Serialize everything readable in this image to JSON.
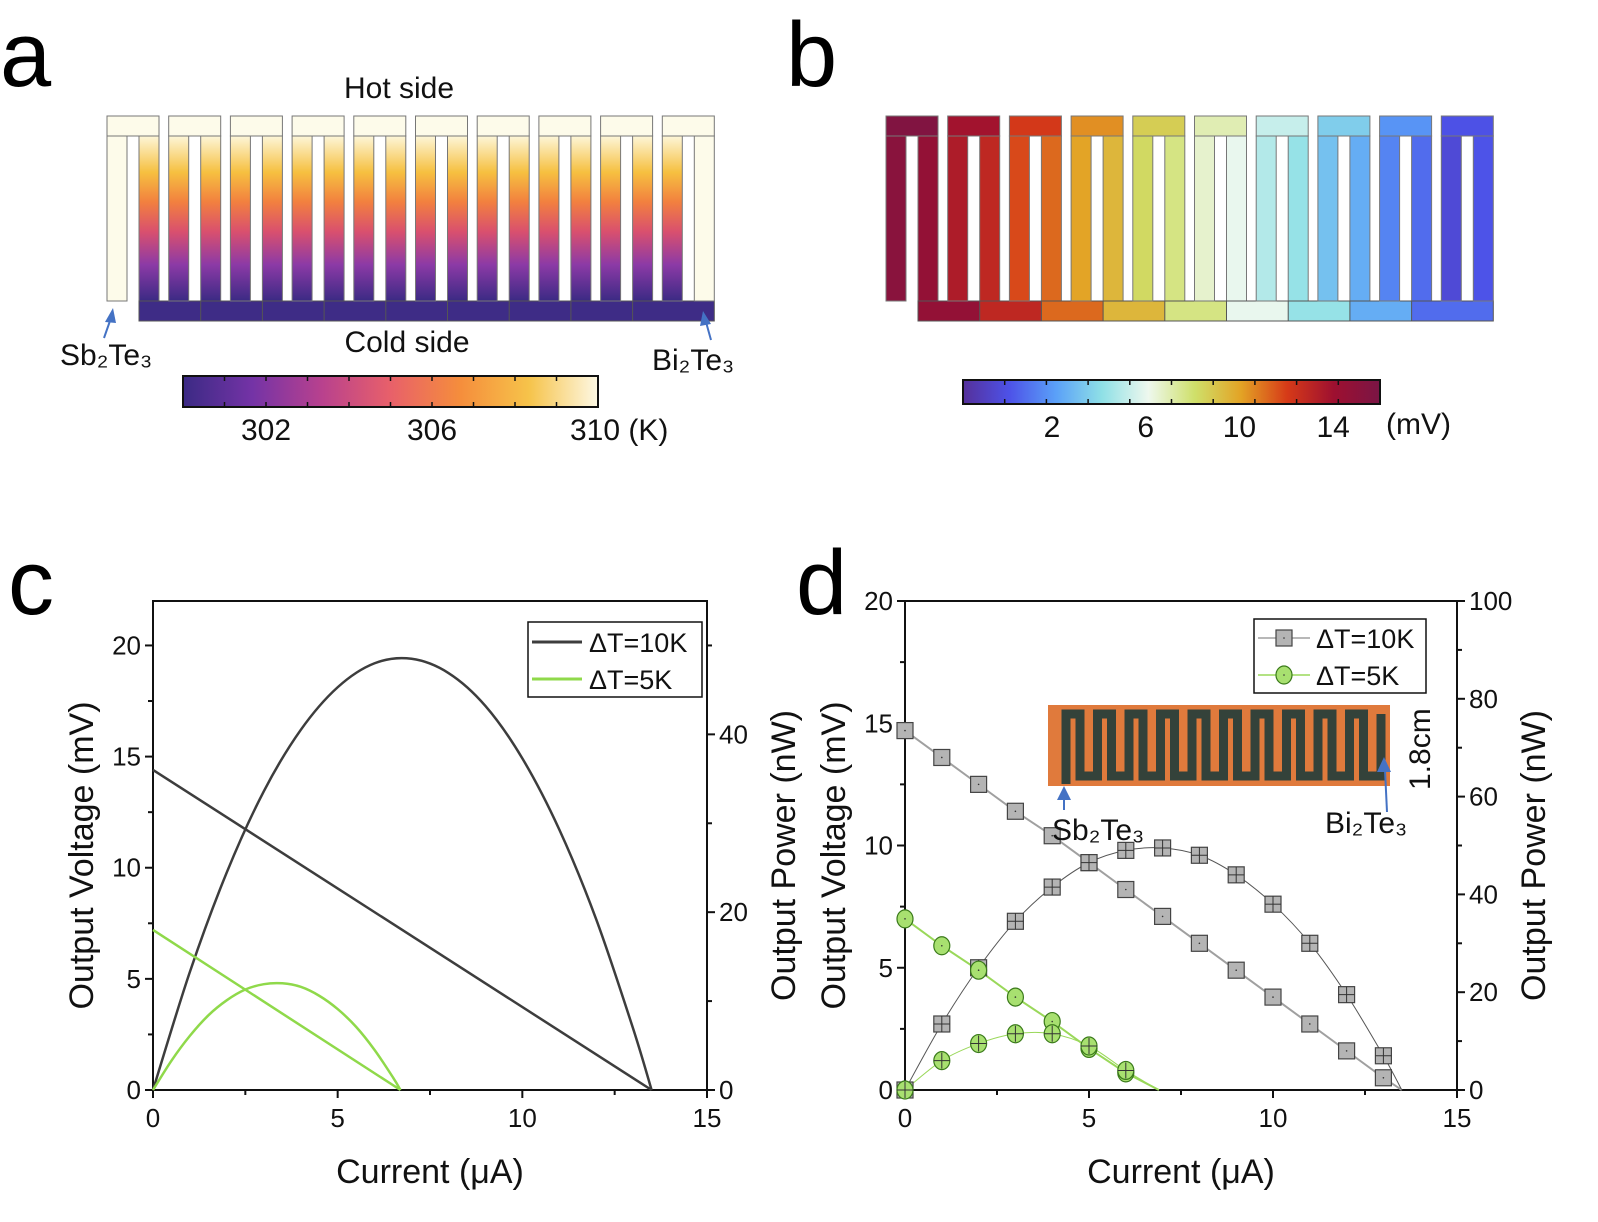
{
  "panels": {
    "a": {
      "letter": "a",
      "hot_label": "Hot side",
      "cold_label": "Cold side",
      "left_material": "Sb₂Te₃",
      "right_material": "Bi₂Te₃",
      "colorbar": {
        "min": 300,
        "max": 310,
        "ticks": [
          "302",
          "306",
          "310 (K)"
        ],
        "tick_values": [
          302,
          306,
          310
        ],
        "colors": [
          "#3b2a84",
          "#7433a6",
          "#b8418e",
          "#e8606a",
          "#f58d3c",
          "#f6c34a",
          "#fdf8e4"
        ]
      }
    },
    "b": {
      "letter": "b",
      "colorbar": {
        "min": -1.8,
        "max": 16,
        "ticks": [
          "2",
          "6",
          "10",
          "14"
        ],
        "tick_values": [
          2,
          6,
          10,
          14
        ],
        "unit": "(mV)",
        "colors": [
          "#55309a",
          "#4d52e8",
          "#5aa0f8",
          "#8fe0e6",
          "#eef8ee",
          "#cfe06a",
          "#e3a325",
          "#d63a18",
          "#9e1030",
          "#7a1545"
        ]
      }
    },
    "c": {
      "letter": "c"
    },
    "d": {
      "letter": "d",
      "inset": {
        "size_label": "1.8cm",
        "left_material": "Sb₂Te₃",
        "right_material": "Bi₂Te₃"
      }
    }
  },
  "chart_data": [
    {
      "panel": "c",
      "type": "line",
      "xlabel": "Current (μA)",
      "ylabel": "Output Voltage (mV)",
      "y2label": "Output Power (nW)",
      "xlim": [
        0,
        15
      ],
      "ylim": [
        0,
        22
      ],
      "y2lim": [
        0,
        55
      ],
      "xticks": [
        0,
        5,
        10,
        15
      ],
      "yticks": [
        0,
        5,
        10,
        15,
        20
      ],
      "y2ticks": [
        0,
        20,
        40
      ],
      "legend": {
        "position": "top-right",
        "entries": [
          "ΔT=10K",
          "ΔT=5K"
        ]
      },
      "series": [
        {
          "name": "ΔT=10K",
          "color": "#3d3d3d",
          "voltage": {
            "x": [
              0,
              13.5
            ],
            "y": [
              14.4,
              0
            ]
          },
          "power": {
            "x": [
              0,
              1,
              2,
              3,
              4,
              5,
              6,
              7,
              8,
              9,
              10,
              11,
              12,
              13,
              13.5
            ],
            "y": [
              0,
              13.3,
              24.5,
              33.6,
              40.5,
              45.3,
              48.0,
              48.5,
              46.9,
              43.2,
              37.3,
              29.3,
              19.2,
              6.9,
              0
            ]
          }
        },
        {
          "name": "ΔT=5K",
          "color": "#8fd94a",
          "voltage": {
            "x": [
              0,
              6.7
            ],
            "y": [
              7.2,
              0
            ]
          },
          "power": {
            "x": [
              0,
              0.5,
              1,
              1.5,
              2,
              2.5,
              3,
              3.5,
              4,
              4.5,
              5,
              5.5,
              6,
              6.5,
              6.7
            ],
            "y": [
              0,
              3.3,
              6.1,
              8.4,
              10.1,
              11.3,
              11.9,
              12.0,
              11.6,
              10.6,
              9.1,
              7.1,
              4.5,
              1.4,
              0
            ]
          }
        }
      ]
    },
    {
      "panel": "d",
      "type": "scatter",
      "xlabel": "Current (μA)",
      "ylabel": "Output Voltage (mV)",
      "y2label": "Output Power (nW)",
      "xlim": [
        0,
        15
      ],
      "ylim": [
        0,
        20
      ],
      "y2lim": [
        0,
        100
      ],
      "xticks": [
        0,
        5,
        10,
        15
      ],
      "yticks": [
        0,
        5,
        10,
        15,
        20
      ],
      "y2ticks": [
        0,
        20,
        40,
        60,
        80,
        100
      ],
      "legend": {
        "position": "top-right",
        "entries": [
          "ΔT=10K",
          "ΔT=5K"
        ]
      },
      "series": [
        {
          "name": "ΔT=10K",
          "marker": "square",
          "fill": "#b4b4b4",
          "line": "#a0a0a0",
          "voltage": {
            "x": [
              0,
              1,
              2,
              3,
              4,
              5,
              6,
              7,
              8,
              9,
              10,
              11,
              12,
              13
            ],
            "y": [
              14.7,
              13.6,
              12.5,
              11.4,
              10.4,
              9.3,
              8.2,
              7.1,
              6.0,
              4.9,
              3.8,
              2.7,
              1.6,
              0.5
            ],
            "x_intercept": 13.5
          },
          "power": {
            "x": [
              0,
              1,
              2,
              3,
              4,
              5,
              6,
              7,
              8,
              9,
              10,
              11,
              12,
              13
            ],
            "y": [
              0,
              13.5,
              25,
              34.5,
              41.5,
              46.5,
              49,
              49.5,
              48,
              44,
              38,
              30,
              19.5,
              7
            ],
            "x_intercept": 13.5
          }
        },
        {
          "name": "ΔT=5K",
          "marker": "circle",
          "fill": "#a8e070",
          "line": "#9ad85a",
          "voltage": {
            "x": [
              0,
              1,
              2,
              3,
              4,
              5,
              6
            ],
            "y": [
              7.0,
              5.9,
              4.9,
              3.8,
              2.8,
              1.7,
              0.7
            ],
            "x_intercept": 6.9
          },
          "power": {
            "x": [
              0,
              1,
              2,
              3,
              4,
              5,
              6
            ],
            "y": [
              0,
              6,
              9.5,
              11.5,
              11.5,
              9,
              4
            ],
            "x_intercept": 6.9
          }
        }
      ]
    }
  ]
}
